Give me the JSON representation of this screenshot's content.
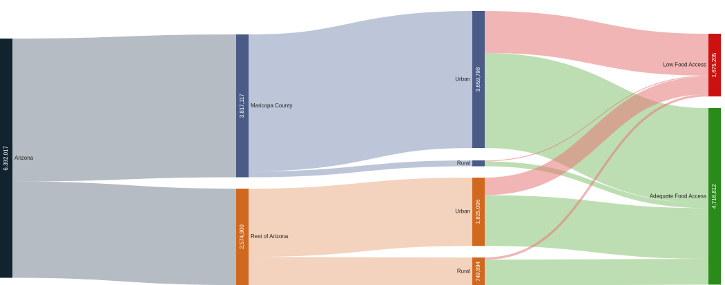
{
  "chart_data": {
    "type": "sankey",
    "nodes": [
      {
        "id": "az",
        "label": "Arizona",
        "value_label": "6,392,017",
        "value": 6392017,
        "color": "#11232f",
        "column": 0
      },
      {
        "id": "mc",
        "label": "Maricopa County",
        "value_label": "3,817,117",
        "value": 3817117,
        "color": "#4a5b86",
        "column": 1
      },
      {
        "id": "ra",
        "label": "Rest of Arizona",
        "value_label": "2,574,900",
        "value": 2574900,
        "color": "#d0691f",
        "column": 1
      },
      {
        "id": "mcu",
        "label": "Urban",
        "value_label": "3,659,798",
        "value": 3659798,
        "color": "#4a5b86",
        "column": 2
      },
      {
        "id": "mcr",
        "label": "Rural",
        "value_label": "",
        "value": 157319,
        "color": "#4a5b86",
        "column": 2
      },
      {
        "id": "rau",
        "label": "Urban",
        "value_label": "1,825,006",
        "value": 1825006,
        "color": "#d0691f",
        "column": 2
      },
      {
        "id": "rar",
        "label": "Rural",
        "value_label": "749,894",
        "value": 749894,
        "color": "#d0691f",
        "column": 2
      },
      {
        "id": "low",
        "label": "Low Food Access",
        "value_label": "1,675,205",
        "value": 1675205,
        "color": "#cc1111",
        "column": 3
      },
      {
        "id": "adeq",
        "label": "Adequate Food Access",
        "value_label": "4,716,812",
        "value": 4716812,
        "color": "#2a8a1a",
        "column": 3
      }
    ],
    "links": [
      {
        "source": "az",
        "target": "mc",
        "value": 3817117,
        "color": "rgba(150,160,170,0.70)"
      },
      {
        "source": "az",
        "target": "ra",
        "value": 2574900,
        "color": "rgba(150,160,170,0.70)"
      },
      {
        "source": "mc",
        "target": "mcu",
        "value": 3659798,
        "color": "rgba(145,160,190,0.60)"
      },
      {
        "source": "mc",
        "target": "mcr",
        "value": 157319,
        "color": "rgba(145,160,190,0.60)"
      },
      {
        "source": "ra",
        "target": "rau",
        "value": 1825006,
        "color": "rgba(233,175,135,0.55)"
      },
      {
        "source": "ra",
        "target": "rar",
        "value": 749894,
        "color": "rgba(233,175,135,0.55)"
      },
      {
        "source": "mcu",
        "target": "low",
        "value": 1120000,
        "color": "rgba(230,120,120,0.55)"
      },
      {
        "source": "mcu",
        "target": "adeq",
        "value": 2539798,
        "color": "rgba(135,195,115,0.55)"
      },
      {
        "source": "mcr",
        "target": "low",
        "value": 25000,
        "color": "rgba(230,120,120,0.55)"
      },
      {
        "source": "mcr",
        "target": "adeq",
        "value": 132319,
        "color": "rgba(135,195,115,0.55)"
      },
      {
        "source": "rau",
        "target": "low",
        "value": 470000,
        "color": "rgba(230,120,120,0.55)"
      },
      {
        "source": "rau",
        "target": "adeq",
        "value": 1355006,
        "color": "rgba(135,195,115,0.55)"
      },
      {
        "source": "rar",
        "target": "low",
        "value": 60205,
        "color": "rgba(230,120,120,0.55)"
      },
      {
        "source": "rar",
        "target": "adeq",
        "value": 689689,
        "color": "rgba(135,195,115,0.55)"
      }
    ]
  }
}
